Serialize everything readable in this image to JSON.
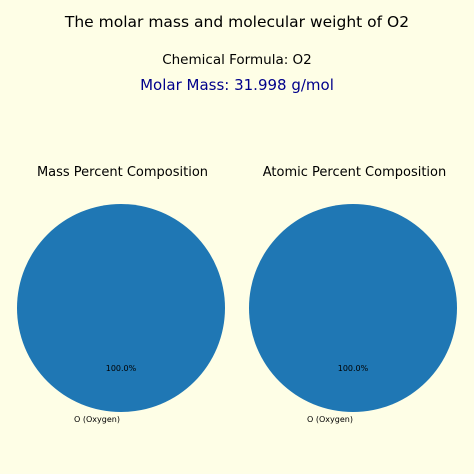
{
  "header": {
    "title": "The molar mass and molecular weight of O2",
    "formula_line": "Chemical Formula: O2",
    "molar_mass_line": "Molar Mass: 31.998 g/mol"
  },
  "colors": {
    "background": "#fefee6",
    "slice": "#1f77b4",
    "molar_mass_text": "#00008b"
  },
  "chart_data": [
    {
      "type": "pie",
      "title": "Mass Percent Composition",
      "labels": [
        "O (Oxygen)"
      ],
      "values": [
        100.0
      ],
      "pct_labels": [
        "100.0%"
      ]
    },
    {
      "type": "pie",
      "title": "Atomic Percent Composition",
      "labels": [
        "O (Oxygen)"
      ],
      "values": [
        100.0
      ],
      "pct_labels": [
        "100.0%"
      ]
    }
  ]
}
